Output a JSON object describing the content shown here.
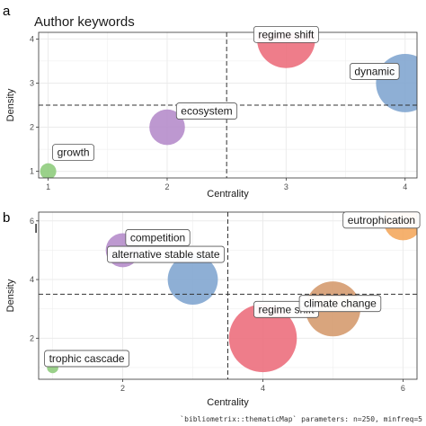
{
  "chart_data": [
    {
      "type": "scatter",
      "panel_letter": "a",
      "title": "Author keywords",
      "xlabel": "Centrality",
      "ylabel": "Density",
      "xlim": [
        0.92,
        4.1
      ],
      "ylim": [
        0.85,
        4.15
      ],
      "xticks": [
        1,
        2,
        3,
        4
      ],
      "yticks": [
        1,
        2,
        3,
        4
      ],
      "grid": true,
      "vline": 2.5,
      "hline": 2.5,
      "points": [
        {
          "label": "growth",
          "x": 1.0,
          "y": 1.0,
          "size": 1,
          "color": "#8ccb7a"
        },
        {
          "label": "ecosystem",
          "x": 2.0,
          "y": 2.0,
          "size": 2.2,
          "color": "#b48ac9"
        },
        {
          "label": "regime shift",
          "x": 3.0,
          "y": 4.0,
          "size": 3.6,
          "color": "#ec6b7a"
        },
        {
          "label": "dynamic",
          "x": 4.0,
          "y": 3.0,
          "size": 3.6,
          "color": "#7ea4cf"
        }
      ]
    },
    {
      "type": "scatter",
      "panel_letter": "b",
      "title": "ISI keywords",
      "xlabel": "Centrality",
      "ylabel": "Density",
      "xlim": [
        0.8,
        6.2
      ],
      "ylim": [
        0.6,
        6.3
      ],
      "xticks": [
        2,
        4,
        6
      ],
      "yticks": [
        2,
        4,
        6
      ],
      "grid": true,
      "vline": 3.5,
      "hline": 3.5,
      "points": [
        {
          "label": "trophic cascade",
          "x": 1.0,
          "y": 1.0,
          "size": 0.7,
          "color": "#8ccb7a"
        },
        {
          "label": "competition",
          "x": 2.0,
          "y": 5.0,
          "size": 2.1,
          "color": "#b48ac9"
        },
        {
          "label": "alternative stable state",
          "x": 3.0,
          "y": 4.0,
          "size": 3.1,
          "color": "#7ea4cf"
        },
        {
          "label": "regime shift",
          "x": 4.0,
          "y": 2.0,
          "size": 4.2,
          "color": "#ec6b7a"
        },
        {
          "label": "climate change",
          "x": 5.0,
          "y": 3.0,
          "size": 3.4,
          "color": "#d4986b"
        },
        {
          "label": "eutrophication",
          "x": 6.0,
          "y": 6.0,
          "size": 2.4,
          "color": "#f4a65a"
        }
      ]
    }
  ],
  "caption": "`bibliometrix::thematicMap` parameters: n=250, minfreq=5"
}
